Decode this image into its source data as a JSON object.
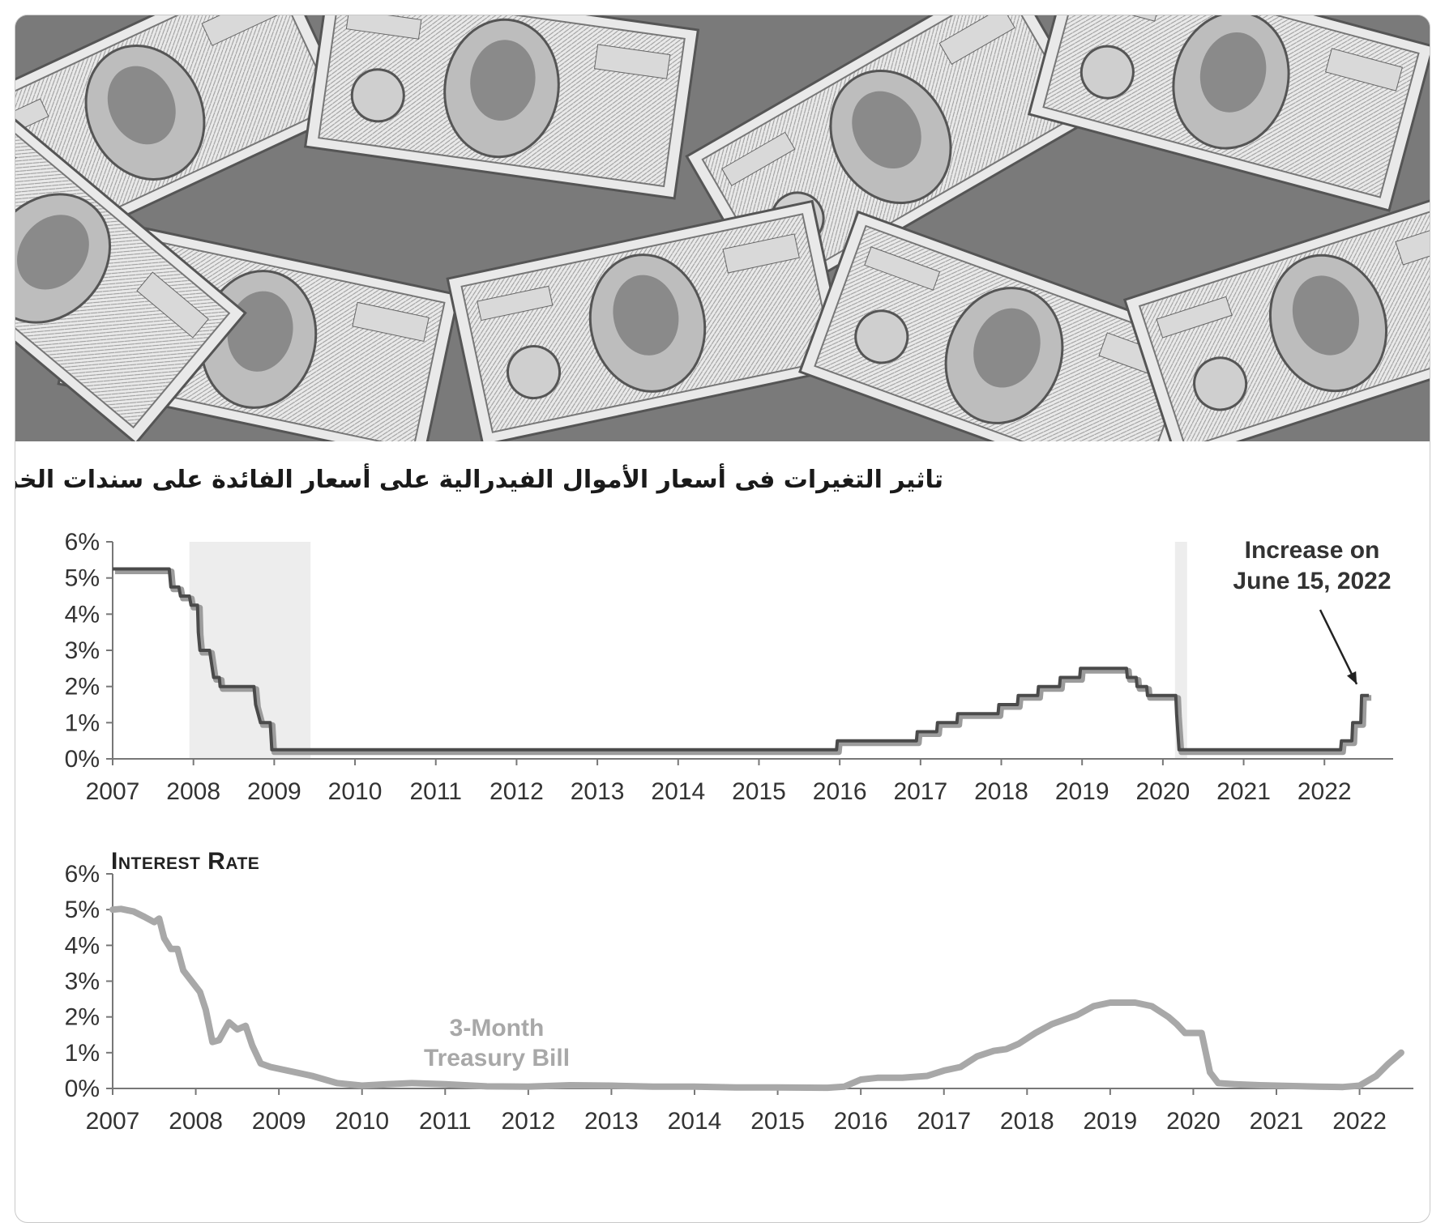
{
  "banner": {
    "icon": "hundred-dollar-bills-photo"
  },
  "title": "تاثير التغيرات فى أسعار الأموال الفيدرالية  على أسعار الفائدة على سندات الخزانة",
  "chart_data": [
    {
      "type": "line",
      "title": "",
      "xlabel": "",
      "ylabel": "",
      "xlim": [
        2007,
        2022.75
      ],
      "ylim": [
        0,
        6
      ],
      "x_ticks": [
        "2007",
        "2008",
        "2009",
        "2010",
        "2011",
        "2012",
        "2013",
        "2014",
        "2015",
        "2016",
        "2017",
        "2018",
        "2019",
        "2020",
        "2021",
        "2022"
      ],
      "y_ticks": [
        "0%",
        "1%",
        "2%",
        "3%",
        "4%",
        "5%",
        "6%"
      ],
      "grid": false,
      "recessions": [
        [
          2007.95,
          2009.45
        ],
        [
          2020.15,
          2020.3
        ]
      ],
      "annotation": {
        "text_line1": "Increase on",
        "text_line2": "June 15, 2022",
        "x": 2022.46,
        "y": 1.75
      },
      "series": [
        {
          "values": [
            [
              2007.0,
              5.25
            ],
            [
              2007.7,
              5.25
            ],
            [
              2007.72,
              4.75
            ],
            [
              2007.82,
              4.75
            ],
            [
              2007.84,
              4.5
            ],
            [
              2007.95,
              4.5
            ],
            [
              2007.97,
              4.25
            ],
            [
              2008.05,
              4.25
            ],
            [
              2008.06,
              3.5
            ],
            [
              2008.08,
              3.0
            ],
            [
              2008.2,
              3.0
            ],
            [
              2008.25,
              2.25
            ],
            [
              2008.32,
              2.25
            ],
            [
              2008.33,
              2.0
            ],
            [
              2008.75,
              2.0
            ],
            [
              2008.77,
              1.5
            ],
            [
              2008.83,
              1.0
            ],
            [
              2008.95,
              1.0
            ],
            [
              2008.97,
              0.25
            ],
            [
              2015.96,
              0.25
            ],
            [
              2015.97,
              0.5
            ],
            [
              2016.95,
              0.5
            ],
            [
              2016.96,
              0.75
            ],
            [
              2017.2,
              0.75
            ],
            [
              2017.21,
              1.0
            ],
            [
              2017.45,
              1.0
            ],
            [
              2017.46,
              1.25
            ],
            [
              2017.96,
              1.25
            ],
            [
              2017.97,
              1.5
            ],
            [
              2018.2,
              1.5
            ],
            [
              2018.21,
              1.75
            ],
            [
              2018.45,
              1.75
            ],
            [
              2018.46,
              2.0
            ],
            [
              2018.72,
              2.0
            ],
            [
              2018.73,
              2.25
            ],
            [
              2018.97,
              2.25
            ],
            [
              2018.98,
              2.5
            ],
            [
              2019.55,
              2.5
            ],
            [
              2019.56,
              2.25
            ],
            [
              2019.67,
              2.25
            ],
            [
              2019.68,
              2.0
            ],
            [
              2019.8,
              2.0
            ],
            [
              2019.81,
              1.75
            ],
            [
              2020.16,
              1.75
            ],
            [
              2020.17,
              1.25
            ],
            [
              2020.2,
              0.25
            ],
            [
              2022.2,
              0.25
            ],
            [
              2022.21,
              0.5
            ],
            [
              2022.34,
              0.5
            ],
            [
              2022.35,
              1.0
            ],
            [
              2022.45,
              1.0
            ],
            [
              2022.46,
              1.75
            ],
            [
              2022.55,
              1.75
            ]
          ]
        }
      ]
    },
    {
      "type": "line",
      "title": "Interest Rate",
      "xlabel": "",
      "ylabel": "",
      "xlim": [
        2007,
        2022.55
      ],
      "ylim": [
        0,
        6
      ],
      "x_ticks": [
        "2007",
        "2008",
        "2009",
        "2010",
        "2011",
        "2012",
        "2013",
        "2014",
        "2015",
        "2016",
        "2017",
        "2018",
        "2019",
        "2020",
        "2021",
        "2022"
      ],
      "y_ticks": [
        "0%",
        "1%",
        "2%",
        "3%",
        "4%",
        "5%",
        "6%"
      ],
      "grid": false,
      "series_label": {
        "line1": "3-Month",
        "line2": "Treasury Bill"
      },
      "series": [
        {
          "name": "3-Month Treasury Bill",
          "values": [
            [
              2007.0,
              5.0
            ],
            [
              2007.1,
              5.02
            ],
            [
              2007.25,
              4.95
            ],
            [
              2007.38,
              4.8
            ],
            [
              2007.5,
              4.65
            ],
            [
              2007.56,
              4.75
            ],
            [
              2007.62,
              4.2
            ],
            [
              2007.7,
              3.9
            ],
            [
              2007.78,
              3.9
            ],
            [
              2007.85,
              3.3
            ],
            [
              2007.95,
              3.0
            ],
            [
              2008.05,
              2.7
            ],
            [
              2008.12,
              2.2
            ],
            [
              2008.2,
              1.3
            ],
            [
              2008.28,
              1.35
            ],
            [
              2008.4,
              1.85
            ],
            [
              2008.5,
              1.65
            ],
            [
              2008.6,
              1.75
            ],
            [
              2008.68,
              1.2
            ],
            [
              2008.78,
              0.7
            ],
            [
              2008.9,
              0.6
            ],
            [
              2009.1,
              0.5
            ],
            [
              2009.4,
              0.35
            ],
            [
              2009.7,
              0.15
            ],
            [
              2010.0,
              0.08
            ],
            [
              2010.3,
              0.12
            ],
            [
              2010.6,
              0.15
            ],
            [
              2011.0,
              0.12
            ],
            [
              2011.5,
              0.06
            ],
            [
              2012.0,
              0.05
            ],
            [
              2012.5,
              0.09
            ],
            [
              2013.0,
              0.08
            ],
            [
              2013.5,
              0.05
            ],
            [
              2014.0,
              0.05
            ],
            [
              2014.5,
              0.03
            ],
            [
              2015.0,
              0.03
            ],
            [
              2015.6,
              0.02
            ],
            [
              2015.8,
              0.05
            ],
            [
              2016.0,
              0.25
            ],
            [
              2016.2,
              0.3
            ],
            [
              2016.5,
              0.3
            ],
            [
              2016.8,
              0.35
            ],
            [
              2017.0,
              0.5
            ],
            [
              2017.2,
              0.6
            ],
            [
              2017.4,
              0.9
            ],
            [
              2017.6,
              1.05
            ],
            [
              2017.75,
              1.1
            ],
            [
              2017.9,
              1.25
            ],
            [
              2018.1,
              1.55
            ],
            [
              2018.3,
              1.8
            ],
            [
              2018.6,
              2.05
            ],
            [
              2018.8,
              2.3
            ],
            [
              2019.0,
              2.4
            ],
            [
              2019.3,
              2.4
            ],
            [
              2019.5,
              2.3
            ],
            [
              2019.7,
              2.0
            ],
            [
              2019.8,
              1.8
            ],
            [
              2019.9,
              1.55
            ],
            [
              2020.1,
              1.55
            ],
            [
              2020.2,
              0.45
            ],
            [
              2020.3,
              0.15
            ],
            [
              2020.5,
              0.12
            ],
            [
              2020.8,
              0.09
            ],
            [
              2021.0,
              0.08
            ],
            [
              2021.5,
              0.05
            ],
            [
              2021.8,
              0.04
            ],
            [
              2022.0,
              0.08
            ],
            [
              2022.2,
              0.35
            ],
            [
              2022.35,
              0.7
            ],
            [
              2022.5,
              1.0
            ]
          ]
        }
      ]
    }
  ]
}
